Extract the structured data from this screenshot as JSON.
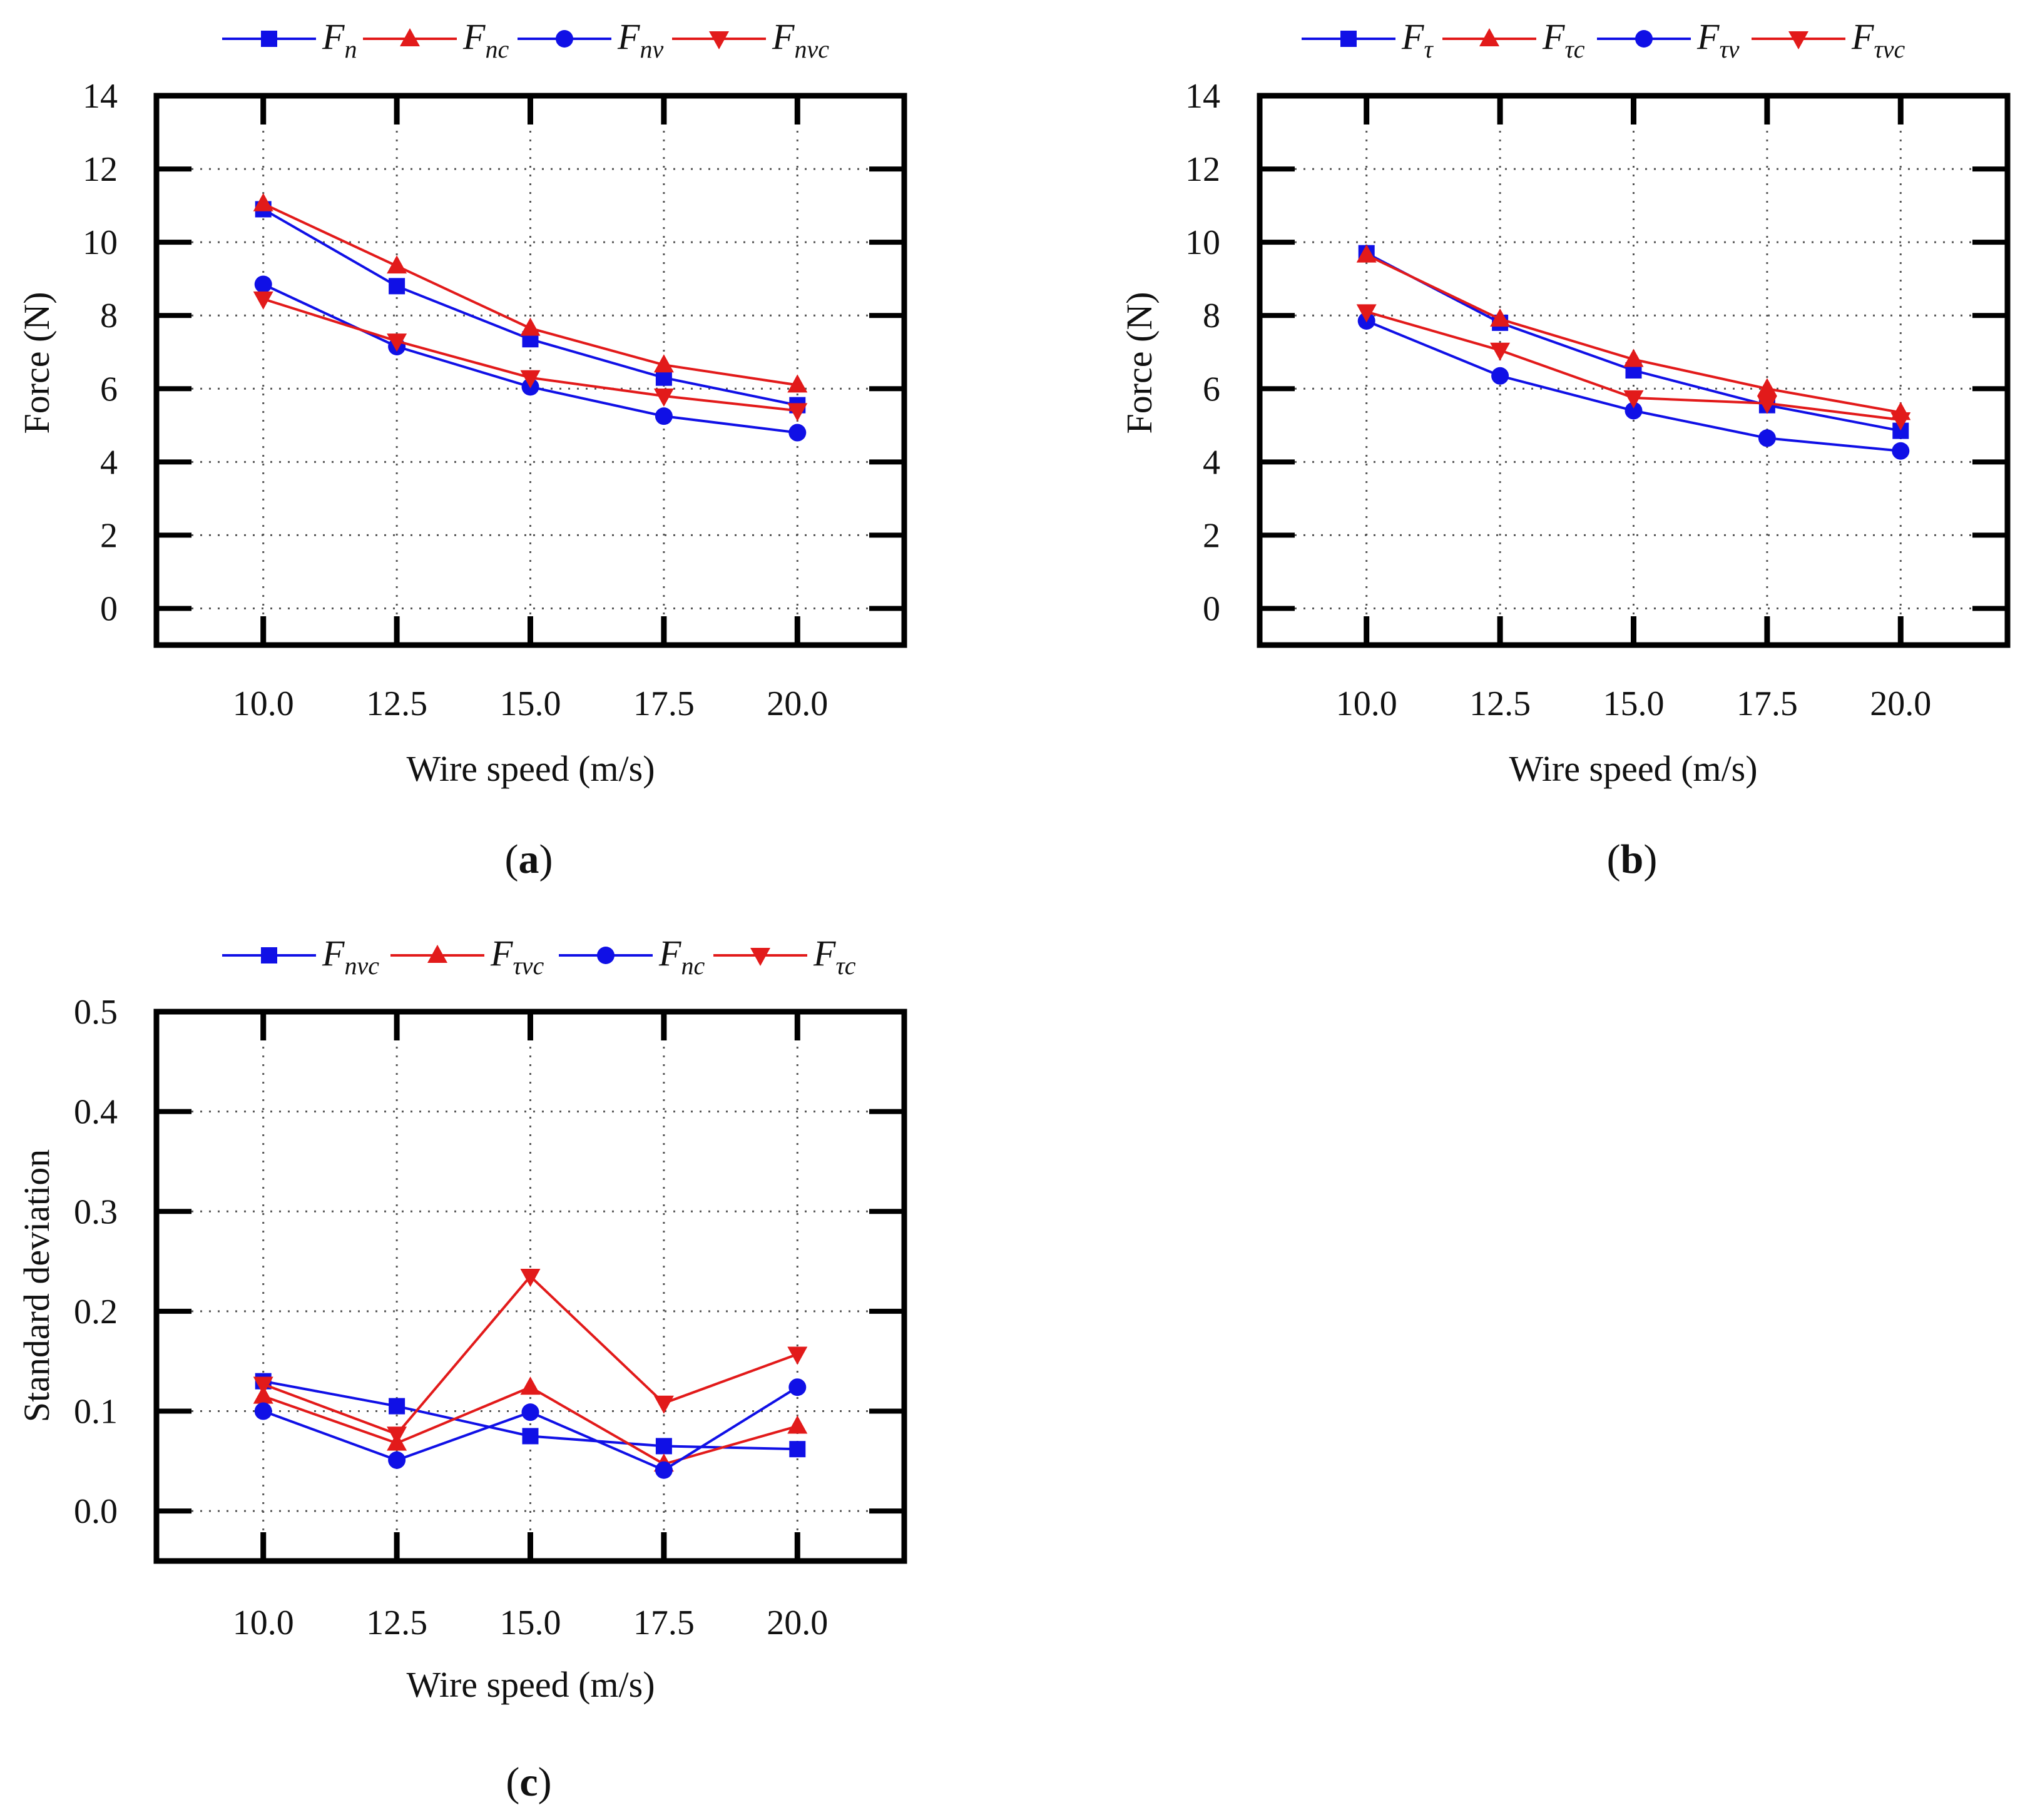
{
  "colors": {
    "blue": "#1010e6",
    "red": "#e21a1a",
    "axis": "#000000",
    "grid": "#555555"
  },
  "chart_data": [
    {
      "id": "a",
      "type": "line",
      "panel_label": "a",
      "xlabel": "Wire speed (m/s)",
      "ylabel": "Force (N)",
      "x": [
        10.0,
        12.5,
        15.0,
        17.5,
        20.0
      ],
      "x_tick_labels": [
        "10.0",
        "12.5",
        "15.0",
        "17.5",
        "20.0"
      ],
      "xlim": [
        8.0,
        22.0
      ],
      "ylim": [
        -1,
        14
      ],
      "y_ticks": [
        0,
        2,
        4,
        6,
        8,
        10,
        12,
        14
      ],
      "y_tick_labels": [
        "0",
        "2",
        "4",
        "6",
        "8",
        "10",
        "12",
        "14"
      ],
      "grid": true,
      "legend_position": "top",
      "series": [
        {
          "name": "F",
          "sub": "n",
          "color": "#1010e6",
          "marker": "square",
          "values": [
            10.9,
            8.8,
            7.35,
            6.3,
            5.55
          ]
        },
        {
          "name": "F",
          "sub": "nc",
          "color": "#e21a1a",
          "marker": "triangle-up",
          "values": [
            11.05,
            9.35,
            7.65,
            6.65,
            6.1
          ]
        },
        {
          "name": "F",
          "sub": "nv",
          "color": "#1010e6",
          "marker": "circle",
          "values": [
            8.85,
            7.15,
            6.05,
            5.25,
            4.8
          ]
        },
        {
          "name": "F",
          "sub": "nvc",
          "color": "#e21a1a",
          "marker": "triangle-down",
          "values": [
            8.45,
            7.3,
            6.3,
            5.8,
            5.4
          ]
        }
      ]
    },
    {
      "id": "b",
      "type": "line",
      "panel_label": "b",
      "xlabel": "Wire speed (m/s)",
      "ylabel": "Force (N)",
      "x": [
        10.0,
        12.5,
        15.0,
        17.5,
        20.0
      ],
      "x_tick_labels": [
        "10.0",
        "12.5",
        "15.0",
        "17.5",
        "20.0"
      ],
      "xlim": [
        8.0,
        22.0
      ],
      "ylim": [
        -1,
        14
      ],
      "y_ticks": [
        0,
        2,
        4,
        6,
        8,
        10,
        12,
        14
      ],
      "y_tick_labels": [
        "0",
        "2",
        "4",
        "6",
        "8",
        "10",
        "12",
        "14"
      ],
      "grid": true,
      "legend_position": "top",
      "series": [
        {
          "name": "F",
          "sub": "τ",
          "color": "#1010e6",
          "marker": "square",
          "values": [
            9.7,
            7.8,
            6.5,
            5.55,
            4.85
          ]
        },
        {
          "name": "F",
          "sub": "τc",
          "color": "#e21a1a",
          "marker": "triangle-up",
          "values": [
            9.65,
            7.9,
            6.8,
            6.0,
            5.35
          ]
        },
        {
          "name": "F",
          "sub": "τv",
          "color": "#1010e6",
          "marker": "circle",
          "values": [
            7.85,
            6.35,
            5.4,
            4.65,
            4.3
          ]
        },
        {
          "name": "F",
          "sub": "τvc",
          "color": "#e21a1a",
          "marker": "triangle-down",
          "values": [
            8.1,
            7.05,
            5.75,
            5.6,
            5.15
          ]
        }
      ]
    },
    {
      "id": "c",
      "type": "line",
      "panel_label": "c",
      "xlabel": "Wire speed (m/s)",
      "ylabel": "Standard deviation",
      "x": [
        10.0,
        12.5,
        15.0,
        17.5,
        20.0
      ],
      "x_tick_labels": [
        "10.0",
        "12.5",
        "15.0",
        "17.5",
        "20.0"
      ],
      "xlim": [
        8.0,
        22.0
      ],
      "ylim": [
        -0.05,
        0.5
      ],
      "y_ticks": [
        0.0,
        0.1,
        0.2,
        0.3,
        0.4,
        0.5
      ],
      "y_tick_labels": [
        "0.0",
        "0.1",
        "0.2",
        "0.3",
        "0.4",
        "0.5"
      ],
      "grid": true,
      "legend_position": "top",
      "series": [
        {
          "name": "F",
          "sub": "nvc",
          "color": "#1010e6",
          "marker": "square",
          "values": [
            0.13,
            0.105,
            0.075,
            0.065,
            0.062
          ]
        },
        {
          "name": "F",
          "sub": "τvc",
          "color": "#e21a1a",
          "marker": "triangle-up",
          "values": [
            0.115,
            0.068,
            0.124,
            0.047,
            0.085
          ]
        },
        {
          "name": "F",
          "sub": "nc",
          "color": "#1010e6",
          "marker": "circle",
          "values": [
            0.1,
            0.051,
            0.099,
            0.041,
            0.124
          ]
        },
        {
          "name": "F",
          "sub": "τc",
          "color": "#e21a1a",
          "marker": "triangle-down",
          "values": [
            0.127,
            0.077,
            0.235,
            0.108,
            0.157
          ]
        }
      ]
    }
  ]
}
